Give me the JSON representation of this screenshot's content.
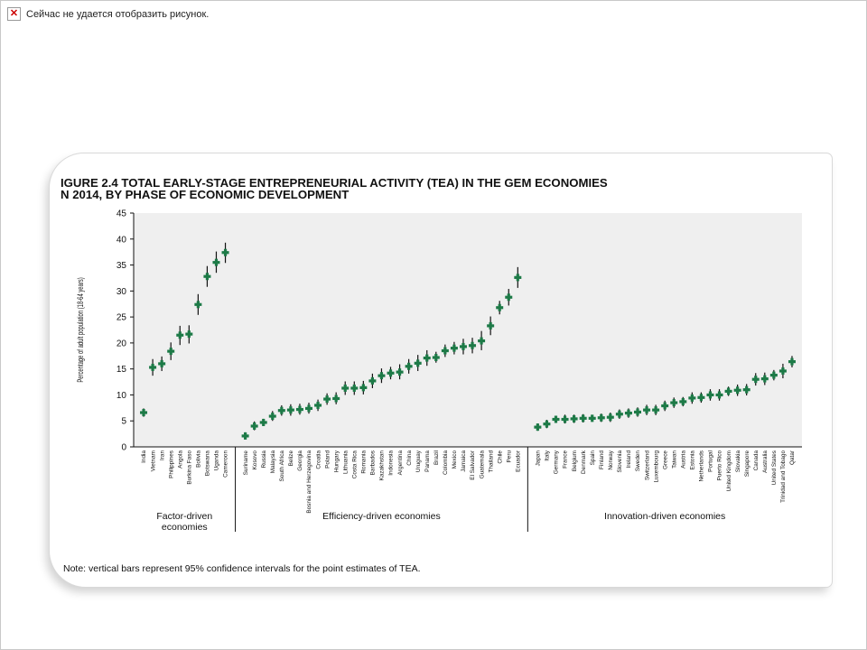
{
  "window": {
    "broken_image_text": "Сейчас не удается отобразить рисунок."
  },
  "chart_data": {
    "type": "scatter",
    "title_line1": "IGURE 2.4  TOTAL EARLY-STAGE ENTREPRENEURIAL ACTIVITY (TEA) IN THE GEM ECONOMIES",
    "title_line2": "N 2014, BY PHASE OF ECONOMIC DEVELOPMENT",
    "ylabel": "Percentage of adult population (18-64 years)",
    "ylim": [
      0,
      45
    ],
    "yticks": [
      0,
      5,
      10,
      15,
      20,
      25,
      30,
      35,
      40,
      45
    ],
    "grid": false,
    "note": "Note: vertical bars represent 95% confidence intervals for the point estimates of TEA.",
    "marker_color": "#1d7a47",
    "groups": [
      {
        "label_line1": "Factor-driven",
        "label_line2": "economies",
        "points": [
          {
            "country": "India",
            "value": 6.6,
            "low": 5.8,
            "high": 7.4
          },
          {
            "country": "Vietnam",
            "value": 15.3,
            "low": 13.7,
            "high": 16.9
          },
          {
            "country": "Iran",
            "value": 16.0,
            "low": 14.6,
            "high": 17.4
          },
          {
            "country": "Philippines",
            "value": 18.4,
            "low": 16.7,
            "high": 20.1
          },
          {
            "country": "Angola",
            "value": 21.5,
            "low": 19.6,
            "high": 23.3
          },
          {
            "country": "Burkina Faso",
            "value": 21.7,
            "low": 19.9,
            "high": 23.4
          },
          {
            "country": "Bolivia",
            "value": 27.4,
            "low": 25.4,
            "high": 29.4
          },
          {
            "country": "Botswana",
            "value": 32.8,
            "low": 30.8,
            "high": 34.8
          },
          {
            "country": "Uganda",
            "value": 35.5,
            "low": 33.5,
            "high": 37.6
          },
          {
            "country": "Cameroon",
            "value": 37.4,
            "low": 35.4,
            "high": 39.3
          }
        ]
      },
      {
        "label_line1": "Efficiency-driven economies",
        "label_line2": "",
        "points": [
          {
            "country": "Suriname",
            "value": 2.1,
            "low": 1.5,
            "high": 2.8
          },
          {
            "country": "Kosovo",
            "value": 4.0,
            "low": 3.2,
            "high": 4.9
          },
          {
            "country": "Russia",
            "value": 4.7,
            "low": 4.0,
            "high": 5.4
          },
          {
            "country": "Malaysia",
            "value": 5.9,
            "low": 5.0,
            "high": 6.9
          },
          {
            "country": "South Africa",
            "value": 7.0,
            "low": 6.0,
            "high": 8.0
          },
          {
            "country": "Belize",
            "value": 7.1,
            "low": 6.0,
            "high": 8.2
          },
          {
            "country": "Georgia",
            "value": 7.2,
            "low": 6.2,
            "high": 8.3
          },
          {
            "country": "Bosnia and Herzegovina",
            "value": 7.4,
            "low": 6.4,
            "high": 8.5
          },
          {
            "country": "Croatia",
            "value": 8.0,
            "low": 6.9,
            "high": 9.1
          },
          {
            "country": "Poland",
            "value": 9.2,
            "low": 8.1,
            "high": 10.3
          },
          {
            "country": "Hungary",
            "value": 9.3,
            "low": 8.2,
            "high": 10.5
          },
          {
            "country": "Lithuania",
            "value": 11.3,
            "low": 10.0,
            "high": 12.6
          },
          {
            "country": "Costa Rica",
            "value": 11.3,
            "low": 10.0,
            "high": 12.6
          },
          {
            "country": "Romania",
            "value": 11.4,
            "low": 10.1,
            "high": 12.7
          },
          {
            "country": "Barbados",
            "value": 12.7,
            "low": 11.3,
            "high": 14.1
          },
          {
            "country": "Kazakhstan",
            "value": 13.7,
            "low": 12.3,
            "high": 15.1
          },
          {
            "country": "Indonesia",
            "value": 14.2,
            "low": 13.0,
            "high": 15.4
          },
          {
            "country": "Argentina",
            "value": 14.4,
            "low": 13.0,
            "high": 15.9
          },
          {
            "country": "China",
            "value": 15.5,
            "low": 14.1,
            "high": 16.9
          },
          {
            "country": "Uruguay",
            "value": 16.1,
            "low": 14.6,
            "high": 17.7
          },
          {
            "country": "Panama",
            "value": 17.1,
            "low": 15.6,
            "high": 18.6
          },
          {
            "country": "Brazil",
            "value": 17.2,
            "low": 16.2,
            "high": 18.3
          },
          {
            "country": "Colombia",
            "value": 18.5,
            "low": 17.3,
            "high": 19.7
          },
          {
            "country": "Mexico",
            "value": 19.0,
            "low": 17.8,
            "high": 20.2
          },
          {
            "country": "Jamaica",
            "value": 19.3,
            "low": 17.8,
            "high": 20.8
          },
          {
            "country": "El Salvador",
            "value": 19.5,
            "low": 18.0,
            "high": 21.0
          },
          {
            "country": "Guatemala",
            "value": 20.4,
            "low": 18.6,
            "high": 22.3
          },
          {
            "country": "Thailand",
            "value": 23.3,
            "low": 21.5,
            "high": 25.1
          },
          {
            "country": "Chile",
            "value": 26.8,
            "low": 25.5,
            "high": 28.1
          },
          {
            "country": "Peru",
            "value": 28.8,
            "low": 27.2,
            "high": 30.4
          },
          {
            "country": "Ecuador",
            "value": 32.6,
            "low": 30.6,
            "high": 34.6
          }
        ]
      },
      {
        "label_line1": "Innovation-driven economies",
        "label_line2": "",
        "points": [
          {
            "country": "Japan",
            "value": 3.8,
            "low": 3.1,
            "high": 4.5
          },
          {
            "country": "Italy",
            "value": 4.4,
            "low": 3.6,
            "high": 5.2
          },
          {
            "country": "Germany",
            "value": 5.3,
            "low": 4.7,
            "high": 5.9
          },
          {
            "country": "France",
            "value": 5.3,
            "low": 4.5,
            "high": 6.2
          },
          {
            "country": "Belgium",
            "value": 5.4,
            "low": 4.6,
            "high": 6.2
          },
          {
            "country": "Denmark",
            "value": 5.5,
            "low": 4.7,
            "high": 6.3
          },
          {
            "country": "Spain",
            "value": 5.5,
            "low": 5.1,
            "high": 5.9
          },
          {
            "country": "Finland",
            "value": 5.6,
            "low": 4.8,
            "high": 6.4
          },
          {
            "country": "Norway",
            "value": 5.7,
            "low": 4.8,
            "high": 6.6
          },
          {
            "country": "Slovenia",
            "value": 6.3,
            "low": 5.4,
            "high": 7.2
          },
          {
            "country": "Ireland",
            "value": 6.5,
            "low": 5.6,
            "high": 7.4
          },
          {
            "country": "Sweden",
            "value": 6.7,
            "low": 5.8,
            "high": 7.6
          },
          {
            "country": "Switzerland",
            "value": 7.1,
            "low": 6.1,
            "high": 8.1
          },
          {
            "country": "Luxembourg",
            "value": 7.1,
            "low": 6.1,
            "high": 8.1
          },
          {
            "country": "Greece",
            "value": 7.9,
            "low": 6.9,
            "high": 8.9
          },
          {
            "country": "Taiwan",
            "value": 8.5,
            "low": 7.5,
            "high": 9.5
          },
          {
            "country": "Austria",
            "value": 8.7,
            "low": 7.8,
            "high": 9.6
          },
          {
            "country": "Estonia",
            "value": 9.4,
            "low": 8.3,
            "high": 10.5
          },
          {
            "country": "Netherlands",
            "value": 9.5,
            "low": 8.5,
            "high": 10.5
          },
          {
            "country": "Portugal",
            "value": 10.0,
            "low": 8.9,
            "high": 11.1
          },
          {
            "country": "Puerto Rico",
            "value": 10.0,
            "low": 8.9,
            "high": 11.1
          },
          {
            "country": "United Kingdom",
            "value": 10.7,
            "low": 9.8,
            "high": 11.6
          },
          {
            "country": "Slovakia",
            "value": 10.9,
            "low": 9.8,
            "high": 12.0
          },
          {
            "country": "Singapore",
            "value": 11.0,
            "low": 9.9,
            "high": 12.1
          },
          {
            "country": "Canada",
            "value": 13.0,
            "low": 11.8,
            "high": 14.2
          },
          {
            "country": "Australia",
            "value": 13.1,
            "low": 11.9,
            "high": 14.3
          },
          {
            "country": "United States",
            "value": 13.8,
            "low": 12.8,
            "high": 14.8
          },
          {
            "country": "Trinidad and Tobago",
            "value": 14.6,
            "low": 13.2,
            "high": 16.0
          },
          {
            "country": "Qatar",
            "value": 16.4,
            "low": 15.3,
            "high": 17.5
          }
        ]
      }
    ]
  }
}
